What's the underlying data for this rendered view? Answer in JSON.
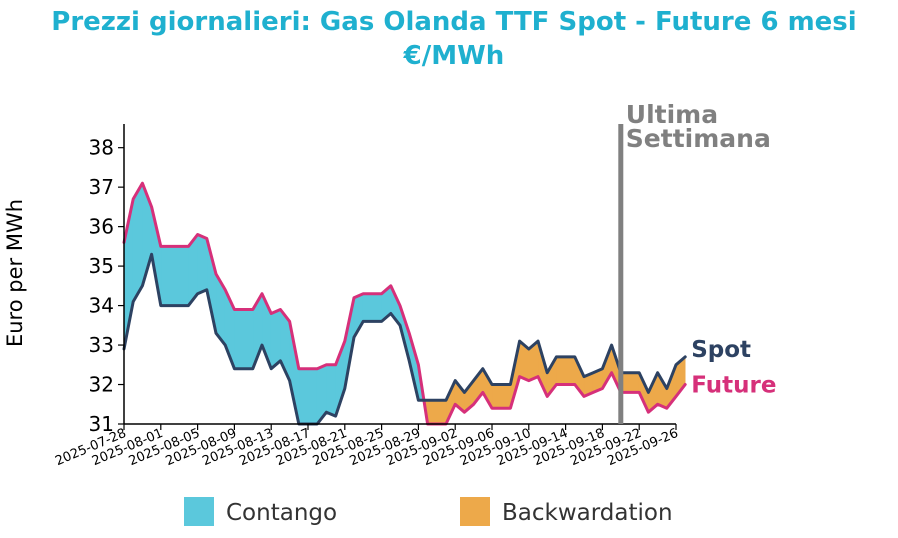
{
  "colors": {
    "title": "#1fb0cf",
    "spot": "#2d4262",
    "future": "#d6307a",
    "contango": "#5bc8dc",
    "backwardation": "#eda94a",
    "marker": "#808080"
  },
  "chart_data": {
    "type": "area",
    "title": "Prezzi giornalieri: Gas Olanda TTF Spot - Future 6 mesi",
    "subtitle": "€/MWh",
    "ylabel": "Euro per MWh",
    "xlabel": "",
    "ylim": [
      31,
      38.6
    ],
    "yticks": [
      31,
      32,
      33,
      34,
      35,
      36,
      37,
      38
    ],
    "xlim": [
      "2025-07-28",
      "2025-09-26"
    ],
    "xticks": [
      "2025-07-28",
      "2025-08-01",
      "2025-08-05",
      "2025-08-09",
      "2025-08-13",
      "2025-08-17",
      "2025-08-21",
      "2025-08-25",
      "2025-08-29",
      "2025-09-02",
      "2025-09-06",
      "2025-09-10",
      "2025-09-14",
      "2025-09-18",
      "2025-09-22",
      "2025-09-26"
    ],
    "series": [
      {
        "name": "Spot",
        "color": "#2d4262",
        "points": [
          [
            "2025-07-28",
            32.9
          ],
          [
            "2025-07-29",
            34.1
          ],
          [
            "2025-07-30",
            34.5
          ],
          [
            "2025-07-31",
            35.3
          ],
          [
            "2025-08-01",
            34.0
          ],
          [
            "2025-08-04",
            34.0
          ],
          [
            "2025-08-05",
            34.3
          ],
          [
            "2025-08-06",
            34.4
          ],
          [
            "2025-08-07",
            33.3
          ],
          [
            "2025-08-08",
            33.0
          ],
          [
            "2025-08-09",
            32.4
          ],
          [
            "2025-08-11",
            32.4
          ],
          [
            "2025-08-12",
            33.0
          ],
          [
            "2025-08-13",
            32.4
          ],
          [
            "2025-08-14",
            32.6
          ],
          [
            "2025-08-15",
            32.1
          ],
          [
            "2025-08-16",
            31.0
          ],
          [
            "2025-08-18",
            31.0
          ],
          [
            "2025-08-19",
            31.3
          ],
          [
            "2025-08-20",
            31.2
          ],
          [
            "2025-08-21",
            31.9
          ],
          [
            "2025-08-22",
            33.2
          ],
          [
            "2025-08-23",
            33.6
          ],
          [
            "2025-08-25",
            33.6
          ],
          [
            "2025-08-26",
            33.8
          ],
          [
            "2025-08-27",
            33.5
          ],
          [
            "2025-08-28",
            32.6
          ],
          [
            "2025-08-29",
            31.6
          ],
          [
            "2025-09-01",
            31.6
          ],
          [
            "2025-09-02",
            32.1
          ],
          [
            "2025-09-03",
            31.8
          ],
          [
            "2025-09-04",
            32.1
          ],
          [
            "2025-09-05",
            32.4
          ],
          [
            "2025-09-06",
            32.0
          ],
          [
            "2025-09-08",
            32.0
          ],
          [
            "2025-09-09",
            33.1
          ],
          [
            "2025-09-10",
            32.9
          ],
          [
            "2025-09-11",
            33.1
          ],
          [
            "2025-09-12",
            32.3
          ],
          [
            "2025-09-13",
            32.7
          ],
          [
            "2025-09-15",
            32.7
          ],
          [
            "2025-09-16",
            32.2
          ],
          [
            "2025-09-17",
            32.3
          ],
          [
            "2025-09-18",
            32.4
          ],
          [
            "2025-09-19",
            33.0
          ],
          [
            "2025-09-20",
            32.3
          ],
          [
            "2025-09-22",
            32.3
          ],
          [
            "2025-09-23",
            31.8
          ],
          [
            "2025-09-24",
            32.3
          ],
          [
            "2025-09-25",
            31.9
          ],
          [
            "2025-09-26",
            32.5
          ],
          [
            "2025-09-27",
            32.7
          ]
        ]
      },
      {
        "name": "Future",
        "color": "#d6307a",
        "points": [
          [
            "2025-07-28",
            35.6
          ],
          [
            "2025-07-29",
            36.7
          ],
          [
            "2025-07-30",
            37.1
          ],
          [
            "2025-07-31",
            36.5
          ],
          [
            "2025-08-01",
            35.5
          ],
          [
            "2025-08-04",
            35.5
          ],
          [
            "2025-08-05",
            35.8
          ],
          [
            "2025-08-06",
            35.7
          ],
          [
            "2025-08-07",
            34.8
          ],
          [
            "2025-08-08",
            34.4
          ],
          [
            "2025-08-09",
            33.9
          ],
          [
            "2025-08-11",
            33.9
          ],
          [
            "2025-08-12",
            34.3
          ],
          [
            "2025-08-13",
            33.8
          ],
          [
            "2025-08-14",
            33.9
          ],
          [
            "2025-08-15",
            33.6
          ],
          [
            "2025-08-16",
            32.4
          ],
          [
            "2025-08-18",
            32.4
          ],
          [
            "2025-08-19",
            32.5
          ],
          [
            "2025-08-20",
            32.5
          ],
          [
            "2025-08-21",
            33.1
          ],
          [
            "2025-08-22",
            34.2
          ],
          [
            "2025-08-23",
            34.3
          ],
          [
            "2025-08-25",
            34.3
          ],
          [
            "2025-08-26",
            34.5
          ],
          [
            "2025-08-27",
            34.0
          ],
          [
            "2025-08-28",
            33.3
          ],
          [
            "2025-08-29",
            32.5
          ],
          [
            "2025-08-30",
            31.0
          ],
          [
            "2025-09-01",
            31.0
          ],
          [
            "2025-09-02",
            31.5
          ],
          [
            "2025-09-03",
            31.3
          ],
          [
            "2025-09-04",
            31.5
          ],
          [
            "2025-09-05",
            31.8
          ],
          [
            "2025-09-06",
            31.4
          ],
          [
            "2025-09-08",
            31.4
          ],
          [
            "2025-09-09",
            32.2
          ],
          [
            "2025-09-10",
            32.1
          ],
          [
            "2025-09-11",
            32.2
          ],
          [
            "2025-09-12",
            31.7
          ],
          [
            "2025-09-13",
            32.0
          ],
          [
            "2025-09-15",
            32.0
          ],
          [
            "2025-09-16",
            31.7
          ],
          [
            "2025-09-17",
            31.8
          ],
          [
            "2025-09-18",
            31.9
          ],
          [
            "2025-09-19",
            32.3
          ],
          [
            "2025-09-20",
            31.8
          ],
          [
            "2025-09-22",
            31.8
          ],
          [
            "2025-09-23",
            31.3
          ],
          [
            "2025-09-24",
            31.5
          ],
          [
            "2025-09-25",
            31.4
          ],
          [
            "2025-09-26",
            31.7
          ],
          [
            "2025-09-27",
            32.0
          ]
        ]
      }
    ],
    "shading": [
      {
        "name": "Contango",
        "color": "#5bc8dc"
      },
      {
        "name": "Backwardation",
        "color": "#eda94a"
      }
    ],
    "marker": {
      "date": "2025-09-20",
      "line1": "Ultima",
      "line2": "Settimana"
    },
    "series_labels": {
      "spot": "Spot",
      "future": "Future"
    },
    "legend": "bottom",
    "grid": false
  }
}
